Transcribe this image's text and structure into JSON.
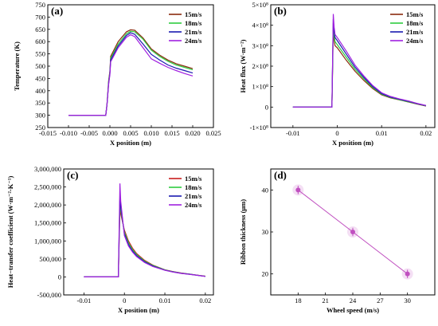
{
  "chart_data": [
    {
      "id": "a",
      "panel_label": "(a)",
      "type": "line",
      "xlabel": "X position (m)",
      "ylabel": "Temperature (K)",
      "xlim": [
        -0.015,
        0.025
      ],
      "ylim": [
        250,
        750
      ],
      "xticks": [
        "-0.015",
        "-0.010",
        "-0.005",
        "0.000",
        "0.005",
        "0.010",
        "0.015",
        "0.020",
        "0.025"
      ],
      "xtick_values": [
        -0.015,
        -0.01,
        -0.005,
        0.0,
        0.005,
        0.01,
        0.015,
        0.02,
        0.025
      ],
      "yticks": [
        "250",
        "300",
        "350",
        "400",
        "450",
        "500",
        "550",
        "600",
        "650",
        "700",
        "750"
      ],
      "ytick_values": [
        250,
        300,
        350,
        400,
        450,
        500,
        550,
        600,
        650,
        700,
        750
      ],
      "legend_position": "top-right",
      "series": [
        {
          "name": "15m/s",
          "color": "#8B2A0E",
          "x": [
            -0.01,
            -0.001,
            -0.0007,
            -0.0003,
            0.0,
            0.0002,
            0.002,
            0.004,
            0.005,
            0.006,
            0.008,
            0.01,
            0.012,
            0.014,
            0.016,
            0.018,
            0.02
          ],
          "y": [
            300,
            300,
            345,
            440,
            480,
            540,
            600,
            640,
            648,
            646,
            615,
            570,
            545,
            525,
            510,
            500,
            490
          ]
        },
        {
          "name": "18m/s",
          "color": "#2ECC40",
          "x": [
            -0.01,
            -0.001,
            -0.0007,
            -0.0003,
            0.0,
            0.0002,
            0.002,
            0.004,
            0.005,
            0.006,
            0.008,
            0.01,
            0.012,
            0.014,
            0.016,
            0.018,
            0.02
          ],
          "y": [
            300,
            300,
            345,
            435,
            475,
            532,
            590,
            632,
            642,
            640,
            610,
            565,
            540,
            520,
            505,
            495,
            485
          ]
        },
        {
          "name": "21m/s",
          "color": "#1A1AB0",
          "x": [
            -0.01,
            -0.001,
            -0.0007,
            -0.0003,
            0.0,
            0.0002,
            0.002,
            0.004,
            0.005,
            0.006,
            0.008,
            0.01,
            0.012,
            0.014,
            0.016,
            0.018,
            0.02
          ],
          "y": [
            300,
            300,
            345,
            430,
            470,
            525,
            582,
            625,
            636,
            630,
            590,
            548,
            525,
            505,
            492,
            482,
            472
          ]
        },
        {
          "name": "24m/s",
          "color": "#A020E0",
          "x": [
            -0.01,
            -0.001,
            -0.0007,
            -0.0003,
            0.0,
            0.0002,
            0.002,
            0.004,
            0.005,
            0.006,
            0.008,
            0.01,
            0.012,
            0.014,
            0.016,
            0.018,
            0.02
          ],
          "y": [
            300,
            300,
            345,
            425,
            465,
            518,
            575,
            618,
            628,
            620,
            575,
            530,
            512,
            495,
            482,
            470,
            460
          ]
        }
      ]
    },
    {
      "id": "b",
      "panel_label": "(b)",
      "type": "line",
      "xlabel": "X position (m)",
      "ylabel": "Heat flux (W·m⁻²)",
      "xlim": [
        -0.015,
        0.022
      ],
      "ylim": [
        -100000000,
        500000000
      ],
      "xticks": [
        "-0.01",
        "0",
        "0.01",
        "0.02"
      ],
      "xtick_values": [
        -0.01,
        0,
        0.01,
        0.02
      ],
      "yticks": [
        "-1×10⁸",
        "0",
        "1×10⁸",
        "2×10⁸",
        "3×10⁸",
        "4×10⁸",
        "5×10⁸"
      ],
      "ytick_values": [
        -100000000,
        0,
        100000000,
        200000000,
        300000000,
        400000000,
        500000000
      ],
      "legend_position": "top-right",
      "series": [
        {
          "name": "15m/s",
          "color": "#8B2A0E",
          "x": [
            -0.01,
            -0.0012,
            -0.0009,
            -0.0007,
            -0.0005,
            0.0,
            0.002,
            0.004,
            0.006,
            0.008,
            0.01,
            0.012,
            0.014,
            0.016,
            0.018,
            0.02
          ],
          "y": [
            0,
            0,
            380000000,
            330000000,
            300000000,
            290000000,
            230000000,
            175000000,
            130000000,
            90000000,
            60000000,
            45000000,
            35000000,
            25000000,
            15000000,
            5000000
          ]
        },
        {
          "name": "18m/s",
          "color": "#2ECC40",
          "x": [
            -0.01,
            -0.0012,
            -0.0009,
            -0.0007,
            -0.0005,
            0.0,
            0.002,
            0.004,
            0.006,
            0.008,
            0.01,
            0.012,
            0.014,
            0.016,
            0.018,
            0.02
          ],
          "y": [
            0,
            0,
            410000000,
            350000000,
            320000000,
            305000000,
            245000000,
            185000000,
            138000000,
            95000000,
            63000000,
            47000000,
            36000000,
            26000000,
            16000000,
            6000000
          ]
        },
        {
          "name": "21m/s",
          "color": "#1A1AB0",
          "x": [
            -0.01,
            -0.0012,
            -0.0009,
            -0.0007,
            -0.0005,
            0.0,
            0.002,
            0.004,
            0.006,
            0.008,
            0.01,
            0.012,
            0.014,
            0.016,
            0.018,
            0.02
          ],
          "y": [
            0,
            0,
            430000000,
            370000000,
            340000000,
            325000000,
            260000000,
            195000000,
            145000000,
            100000000,
            66000000,
            49000000,
            38000000,
            28000000,
            17000000,
            7000000
          ]
        },
        {
          "name": "24m/s",
          "color": "#A020E0",
          "x": [
            -0.01,
            -0.0012,
            -0.0009,
            -0.0007,
            -0.0005,
            0.0,
            0.002,
            0.004,
            0.006,
            0.008,
            0.01,
            0.012,
            0.014,
            0.016,
            0.018,
            0.02
          ],
          "y": [
            0,
            0,
            455000000,
            390000000,
            355000000,
            340000000,
            275000000,
            205000000,
            152000000,
            105000000,
            70000000,
            52000000,
            40000000,
            30000000,
            18000000,
            8000000
          ]
        }
      ]
    },
    {
      "id": "c",
      "panel_label": "(c)",
      "type": "line",
      "xlabel": "X position (m)",
      "ylabel": "Heat−transfer coefficient (W·m⁻²·K⁻¹)",
      "xlim": [
        -0.015,
        0.022
      ],
      "ylim": [
        -500000,
        3000000
      ],
      "xticks": [
        "-0.01",
        "0",
        "0.01",
        "0.02"
      ],
      "xtick_values": [
        -0.01,
        0,
        0.01,
        0.02
      ],
      "yticks": [
        "-500,000",
        "0",
        "500,000",
        "1,000,000",
        "1,500,000",
        "2,000,000",
        "2,500,000",
        "3,000,000"
      ],
      "ytick_values": [
        -500000,
        0,
        500000,
        1000000,
        1500000,
        2000000,
        2500000,
        3000000
      ],
      "legend_position": "top-right",
      "series": [
        {
          "name": "15m/s",
          "color": "#C81E1E",
          "x": [
            -0.01,
            -0.0015,
            -0.0011,
            -0.0009,
            0.0,
            0.001,
            0.002,
            0.003,
            0.005,
            0.007,
            0.01,
            0.012,
            0.014,
            0.016,
            0.018,
            0.02
          ],
          "y": [
            0,
            0,
            1900000,
            1750000,
            1300000,
            1000000,
            800000,
            650000,
            460000,
            330000,
            200000,
            150000,
            110000,
            80000,
            50000,
            20000
          ]
        },
        {
          "name": "18m/s",
          "color": "#2ECC40",
          "x": [
            -0.01,
            -0.0015,
            -0.0011,
            -0.0009,
            0.0,
            0.001,
            0.002,
            0.003,
            0.005,
            0.007,
            0.01,
            0.012,
            0.014,
            0.016,
            0.018,
            0.02
          ],
          "y": [
            0,
            0,
            2050000,
            1850000,
            1250000,
            950000,
            760000,
            620000,
            440000,
            320000,
            195000,
            145000,
            105000,
            78000,
            48000,
            18000
          ]
        },
        {
          "name": "21m/s",
          "color": "#1A1AB0",
          "x": [
            -0.01,
            -0.0015,
            -0.0011,
            -0.0009,
            0.0,
            0.001,
            0.002,
            0.003,
            0.005,
            0.007,
            0.01,
            0.012,
            0.014,
            0.016,
            0.018,
            0.02
          ],
          "y": [
            0,
            0,
            2250000,
            1950000,
            1200000,
            900000,
            720000,
            590000,
            420000,
            305000,
            190000,
            140000,
            100000,
            75000,
            46000,
            16000
          ]
        },
        {
          "name": "24m/s",
          "color": "#A020E0",
          "x": [
            -0.01,
            -0.0015,
            -0.0011,
            -0.0009,
            0.0,
            0.001,
            0.002,
            0.003,
            0.005,
            0.007,
            0.01,
            0.012,
            0.014,
            0.016,
            0.018,
            0.02
          ],
          "y": [
            0,
            0,
            2600000,
            2100000,
            1150000,
            860000,
            690000,
            565000,
            400000,
            290000,
            185000,
            135000,
            98000,
            72000,
            44000,
            14000
          ]
        }
      ]
    },
    {
      "id": "d",
      "panel_label": "(d)",
      "type": "line",
      "xlabel": "Wheel speed (m/s)",
      "ylabel": "Ribbon thickness (μm)",
      "xlim": [
        15,
        33
      ],
      "ylim": [
        15,
        45
      ],
      "xticks": [
        "18",
        "21",
        "24",
        "27",
        "30"
      ],
      "xtick_values": [
        18,
        21,
        24,
        27,
        30
      ],
      "yticks": [
        "20",
        "30",
        "40"
      ],
      "ytick_values": [
        20,
        30,
        40
      ],
      "series": [
        {
          "color": "#C050C0",
          "x": [
            18,
            24,
            30
          ],
          "y": [
            40,
            30,
            20
          ],
          "err": [
            1,
            1,
            1
          ]
        }
      ]
    }
  ]
}
